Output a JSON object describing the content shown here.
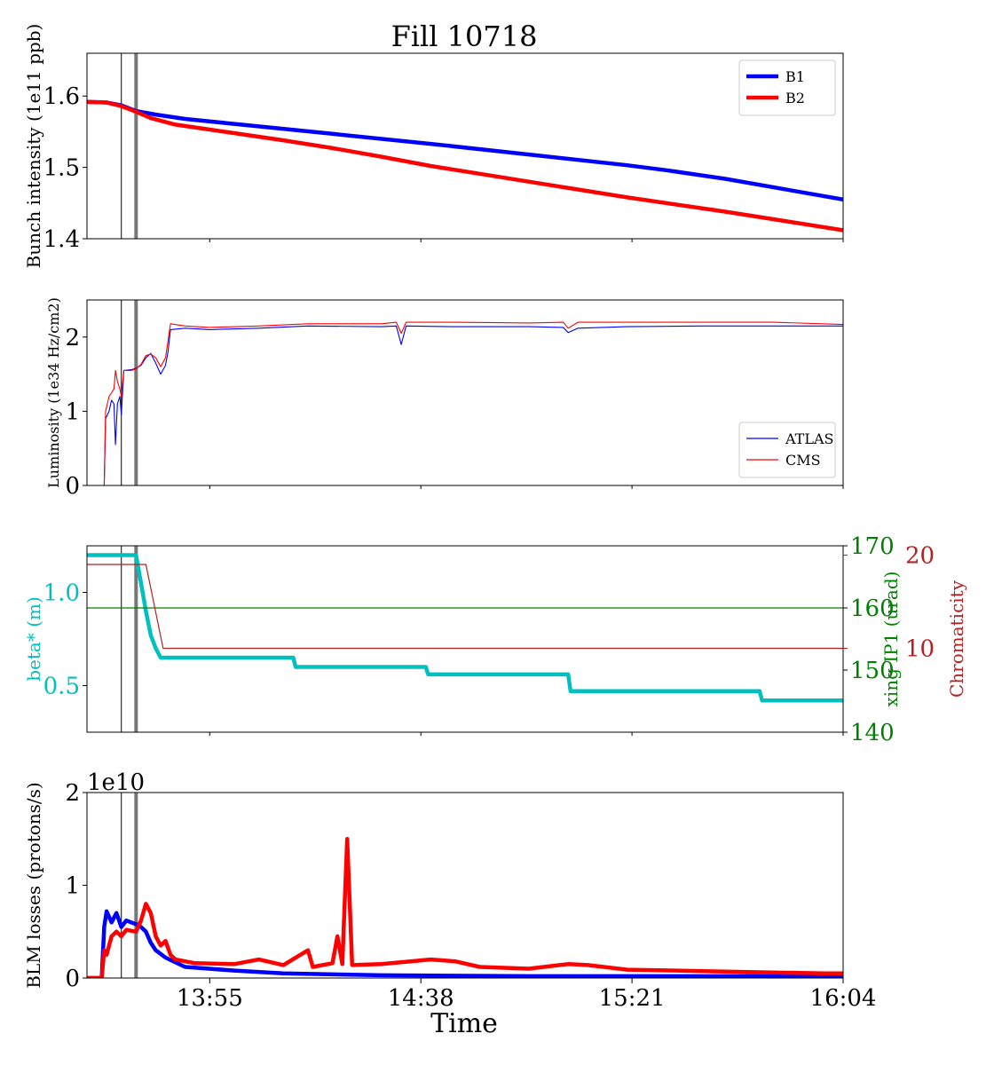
{
  "figure": {
    "title": "Fill 10718",
    "xlabel": "Time"
  },
  "chart_data": [
    {
      "id": "intensity",
      "type": "line",
      "title": "Fill 10718",
      "ylabel": "Bunch intensity (1e11 ppb)",
      "xlim": [
        "13:30",
        "16:04"
      ],
      "ylim": [
        1.4,
        1.66
      ],
      "yticks": [
        "1.4",
        "1.5",
        "1.6"
      ],
      "legend": "top-right",
      "vlines": [
        {
          "t": "13:37",
          "color": "#000000",
          "style": "thin"
        },
        {
          "t": "13:40",
          "color": "#777777",
          "style": "thick"
        }
      ],
      "series": [
        {
          "name": "B1",
          "color": "#0000ff",
          "points": [
            [
              "13:30",
              1.592
            ],
            [
              "13:34",
              1.591
            ],
            [
              "13:37",
              1.587
            ],
            [
              "13:40",
              1.579
            ],
            [
              "13:44",
              1.574
            ],
            [
              "13:50",
              1.568
            ],
            [
              "14:00",
              1.561
            ],
            [
              "14:20",
              1.547
            ],
            [
              "14:40",
              1.533
            ],
            [
              "15:00",
              1.518
            ],
            [
              "15:20",
              1.503
            ],
            [
              "15:28",
              1.496
            ],
            [
              "15:40",
              1.484
            ],
            [
              "16:04",
              1.455
            ]
          ]
        },
        {
          "name": "B2",
          "color": "#ff0000",
          "points": [
            [
              "13:30",
              1.592
            ],
            [
              "13:34",
              1.591
            ],
            [
              "13:37",
              1.586
            ],
            [
              "13:40",
              1.578
            ],
            [
              "13:43",
              1.569
            ],
            [
              "13:48",
              1.56
            ],
            [
              "13:55",
              1.553
            ],
            [
              "14:10",
              1.538
            ],
            [
              "14:20",
              1.527
            ],
            [
              "14:30",
              1.515
            ],
            [
              "14:40",
              1.502
            ],
            [
              "15:00",
              1.48
            ],
            [
              "15:20",
              1.458
            ],
            [
              "15:40",
              1.438
            ],
            [
              "16:04",
              1.412
            ]
          ]
        }
      ]
    },
    {
      "id": "luminosity",
      "type": "line",
      "ylabel": "Luminosity (1e34 Hz/cm2)",
      "xlim": [
        "13:30",
        "16:04"
      ],
      "ylim": [
        0,
        2.5
      ],
      "yticks": [
        "0",
        "1",
        "2"
      ],
      "legend": "bottom-right",
      "vlines": [
        {
          "t": "13:37",
          "color": "#000000",
          "style": "thin"
        },
        {
          "t": "13:40",
          "color": "#777777",
          "style": "thick"
        }
      ],
      "series": [
        {
          "name": "ATLAS",
          "color": "#0000ff",
          "points": [
            [
              "13:30",
              0
            ],
            [
              "13:33.5",
              0
            ],
            [
              "13:33.8",
              0.9
            ],
            [
              "13:34.5",
              1.0
            ],
            [
              "13:35",
              1.15
            ],
            [
              "13:35.5",
              1.1
            ],
            [
              "13:35.8",
              0.55
            ],
            [
              "13:36.2",
              1.1
            ],
            [
              "13:36.7",
              1.2
            ],
            [
              "13:37",
              0.95
            ],
            [
              "13:37.5",
              1.55
            ],
            [
              "13:39",
              1.56
            ],
            [
              "13:40",
              1.58
            ],
            [
              "13:41",
              1.62
            ],
            [
              "13:42",
              1.72
            ],
            [
              "13:43",
              1.78
            ],
            [
              "13:44",
              1.65
            ],
            [
              "13:45",
              1.5
            ],
            [
              "13:46",
              1.62
            ],
            [
              "13:46.5",
              1.8
            ],
            [
              "13:47",
              2.1
            ],
            [
              "13:50",
              2.12
            ],
            [
              "13:55",
              2.1
            ],
            [
              "14:05",
              2.12
            ],
            [
              "14:15",
              2.15
            ],
            [
              "14:30",
              2.14
            ],
            [
              "14:33",
              2.15
            ],
            [
              "14:34",
              1.9
            ],
            [
              "14:35",
              2.15
            ],
            [
              "14:45",
              2.14
            ],
            [
              "15:00",
              2.14
            ],
            [
              "15:07",
              2.13
            ],
            [
              "15:08",
              2.06
            ],
            [
              "15:10",
              2.12
            ],
            [
              "15:20",
              2.14
            ],
            [
              "15:35",
              2.15
            ],
            [
              "15:50",
              2.15
            ],
            [
              "16:04",
              2.15
            ]
          ]
        },
        {
          "name": "CMS",
          "color": "#ff0000",
          "points": [
            [
              "13:30",
              0
            ],
            [
              "13:33.5",
              0
            ],
            [
              "13:33.8",
              1.0
            ],
            [
              "13:34.5",
              1.2
            ],
            [
              "13:35",
              1.25
            ],
            [
              "13:35.5",
              1.3
            ],
            [
              "13:35.8",
              1.55
            ],
            [
              "13:36.2",
              1.4
            ],
            [
              "13:36.7",
              1.3
            ],
            [
              "13:37",
              1.2
            ],
            [
              "13:37.5",
              1.55
            ],
            [
              "13:39",
              1.55
            ],
            [
              "13:40",
              1.57
            ],
            [
              "13:41",
              1.63
            ],
            [
              "13:42",
              1.75
            ],
            [
              "13:43",
              1.77
            ],
            [
              "13:44",
              1.72
            ],
            [
              "13:45",
              1.6
            ],
            [
              "13:46",
              1.72
            ],
            [
              "13:46.5",
              1.95
            ],
            [
              "13:47",
              2.18
            ],
            [
              "13:50",
              2.15
            ],
            [
              "13:55",
              2.13
            ],
            [
              "14:05",
              2.15
            ],
            [
              "14:15",
              2.18
            ],
            [
              "14:30",
              2.18
            ],
            [
              "14:33",
              2.2
            ],
            [
              "14:34",
              2.05
            ],
            [
              "14:35",
              2.2
            ],
            [
              "14:45",
              2.2
            ],
            [
              "15:00",
              2.19
            ],
            [
              "15:07",
              2.2
            ],
            [
              "15:08",
              2.12
            ],
            [
              "15:10",
              2.2
            ],
            [
              "15:20",
              2.2
            ],
            [
              "15:35",
              2.2
            ],
            [
              "15:50",
              2.2
            ],
            [
              "16:04",
              2.17
            ]
          ]
        }
      ]
    },
    {
      "id": "optics",
      "type": "line",
      "ylabel": "beta* (m)",
      "ylabel2": "xing IP1 (urad)",
      "ylabel3": "Chromaticity",
      "xlim": [
        "13:30",
        "16:04"
      ],
      "ylim": [
        0.25,
        1.25
      ],
      "ylim2": [
        140,
        170
      ],
      "ylim3": [
        1,
        21
      ],
      "yticks": [
        "0.5",
        "1.0"
      ],
      "yticks2": [
        "140",
        "150",
        "160",
        "170"
      ],
      "yticks3": [
        "10",
        "20"
      ],
      "vlines": [
        {
          "t": "13:37",
          "color": "#000000",
          "style": "thin"
        },
        {
          "t": "13:40",
          "color": "#777777",
          "style": "thick"
        }
      ],
      "series": [
        {
          "name": "beta*",
          "axis": "left",
          "color": "#00bfbf",
          "points": [
            [
              "13:30",
              1.2
            ],
            [
              "13:40",
              1.2
            ],
            [
              "13:41",
              1.05
            ],
            [
              "13:42",
              0.9
            ],
            [
              "13:43",
              0.77
            ],
            [
              "13:44",
              0.7
            ],
            [
              "13:45",
              0.65
            ],
            [
              "14:12",
              0.65
            ],
            [
              "14:12.5",
              0.6
            ],
            [
              "14:39",
              0.6
            ],
            [
              "14:39.5",
              0.56
            ],
            [
              "15:08",
              0.56
            ],
            [
              "15:08.5",
              0.47
            ],
            [
              "15:47",
              0.47
            ],
            [
              "15:47.5",
              0.42
            ],
            [
              "16:04",
              0.42
            ]
          ]
        },
        {
          "name": "xing IP1",
          "axis": "right",
          "color": "#008000",
          "points": [
            [
              "13:30",
              160
            ],
            [
              "16:04",
              160
            ]
          ]
        },
        {
          "name": "Chromaticity",
          "axis": "right2",
          "color": "#b22222",
          "points": [
            [
              "13:30",
              19
            ],
            [
              "13:42",
              19
            ],
            [
              "13:45.5",
              10
            ],
            [
              "16:04",
              10
            ]
          ]
        }
      ]
    },
    {
      "id": "blm",
      "type": "line",
      "ylabel": "BLM losses (protons/s)",
      "xlim": [
        "13:30",
        "16:04"
      ],
      "ylim": [
        0,
        2.0
      ],
      "yticks": [
        "0",
        "1",
        "2"
      ],
      "yscale_label": "1e10",
      "xticks": [
        "13:55",
        "14:38",
        "15:21",
        "16:04"
      ],
      "vlines": [
        {
          "t": "13:37",
          "color": "#000000",
          "style": "thin"
        },
        {
          "t": "13:40",
          "color": "#777777",
          "style": "thick"
        }
      ],
      "series": [
        {
          "name": "B1",
          "color": "#0000ff",
          "points": [
            [
              "13:30",
              0
            ],
            [
              "13:33",
              0
            ],
            [
              "13:33.5",
              0.55
            ],
            [
              "13:34",
              0.72
            ],
            [
              "13:35",
              0.6
            ],
            [
              "13:36",
              0.7
            ],
            [
              "13:37",
              0.55
            ],
            [
              "13:38",
              0.62
            ],
            [
              "13:39",
              0.6
            ],
            [
              "13:40",
              0.58
            ],
            [
              "13:41",
              0.55
            ],
            [
              "13:42",
              0.5
            ],
            [
              "13:43",
              0.38
            ],
            [
              "13:44",
              0.3
            ],
            [
              "13:46",
              0.22
            ],
            [
              "13:50",
              0.12
            ],
            [
              "14:00",
              0.08
            ],
            [
              "14:10",
              0.05
            ],
            [
              "14:30",
              0.03
            ],
            [
              "15:00",
              0.02
            ],
            [
              "15:30",
              0.02
            ],
            [
              "16:04",
              0.02
            ]
          ]
        },
        {
          "name": "B2",
          "color": "#ff0000",
          "points": [
            [
              "13:30",
              0
            ],
            [
              "13:33",
              0
            ],
            [
              "13:33.5",
              0.3
            ],
            [
              "13:34",
              0.25
            ],
            [
              "13:35",
              0.45
            ],
            [
              "13:36",
              0.5
            ],
            [
              "13:37",
              0.45
            ],
            [
              "13:38",
              0.52
            ],
            [
              "13:40",
              0.5
            ],
            [
              "13:41",
              0.62
            ],
            [
              "13:42",
              0.8
            ],
            [
              "13:43",
              0.7
            ],
            [
              "13:44",
              0.45
            ],
            [
              "13:45",
              0.35
            ],
            [
              "13:46",
              0.4
            ],
            [
              "13:47",
              0.25
            ],
            [
              "13:48",
              0.2
            ],
            [
              "13:52",
              0.16
            ],
            [
              "14:00",
              0.15
            ],
            [
              "14:05",
              0.2
            ],
            [
              "14:10",
              0.14
            ],
            [
              "14:15",
              0.3
            ],
            [
              "14:16",
              0.12
            ],
            [
              "14:20",
              0.16
            ],
            [
              "14:21",
              0.45
            ],
            [
              "14:22",
              0.15
            ],
            [
              "14:23",
              1.5
            ],
            [
              "14:24",
              0.14
            ],
            [
              "14:30",
              0.15
            ],
            [
              "14:40",
              0.2
            ],
            [
              "14:45",
              0.18
            ],
            [
              "14:50",
              0.12
            ],
            [
              "15:00",
              0.1
            ],
            [
              "15:08",
              0.15
            ],
            [
              "15:12",
              0.14
            ],
            [
              "15:20",
              0.09
            ],
            [
              "15:40",
              0.07
            ],
            [
              "16:00",
              0.05
            ],
            [
              "16:04",
              0.05
            ]
          ]
        }
      ]
    }
  ]
}
